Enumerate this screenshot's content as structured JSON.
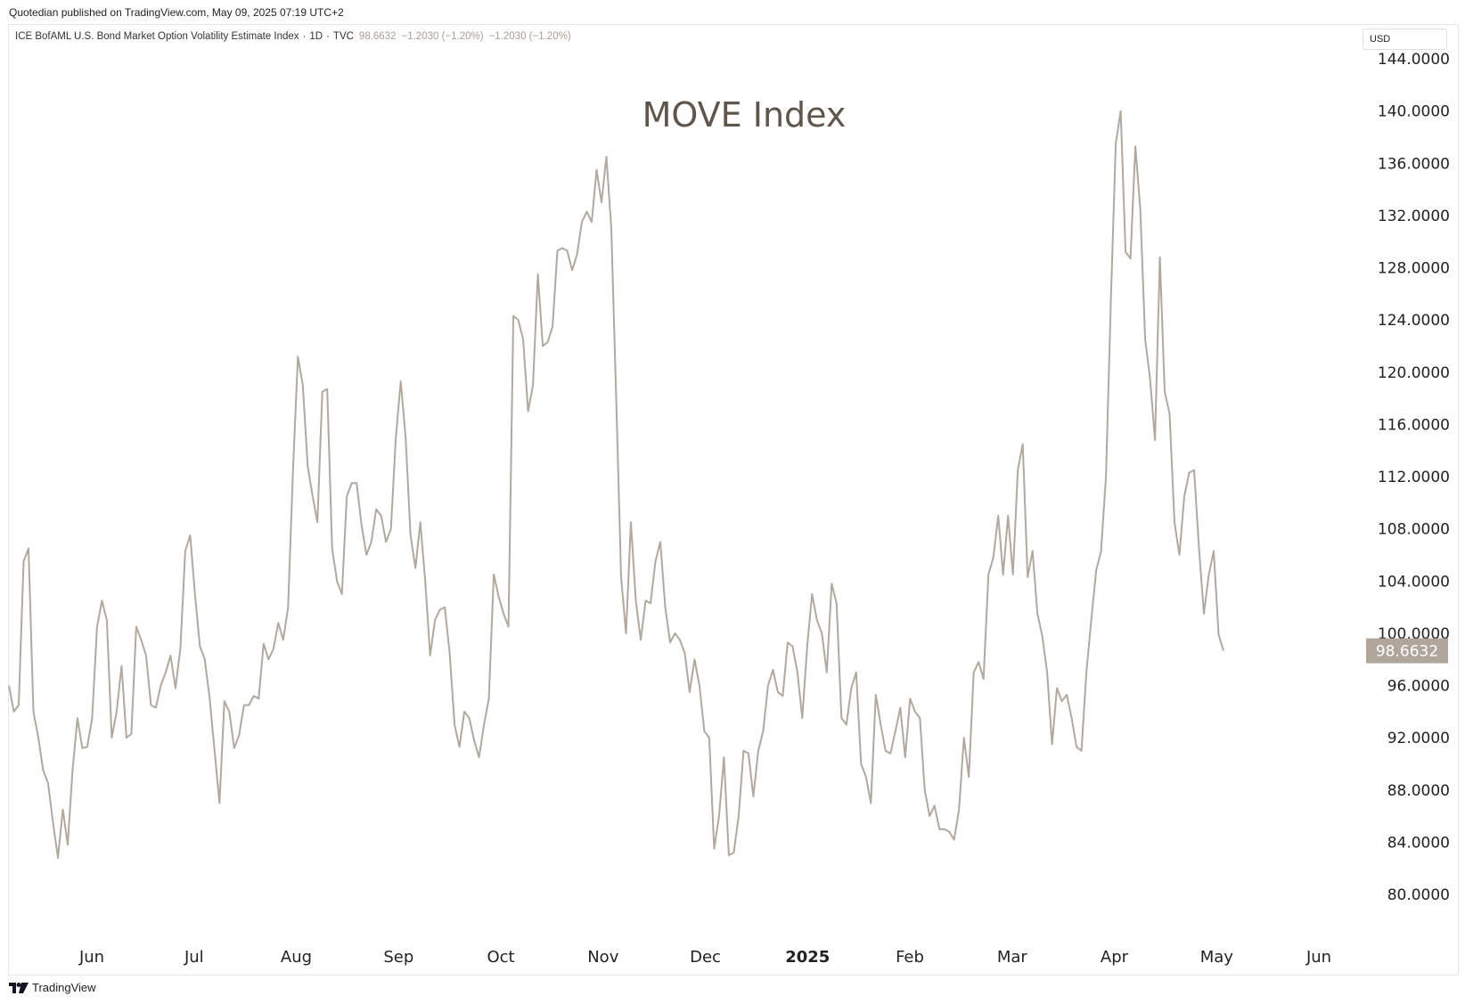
{
  "header": {
    "publish_line": "Quotedian published on TradingView.com, May 09, 2025 07:19 UTC+2",
    "symbol_name": "ICE BofAML U.S. Bond Market Option Volatility Estimate Index",
    "interval": "1D",
    "source": "TVC",
    "last_value": "98.6632",
    "change_1": "−1.2030 (−1.20%)",
    "change_2": "−1.2030 (−1.20%)",
    "currency": "USD"
  },
  "footer": {
    "brand": "TradingView"
  },
  "colors": {
    "line": "#b2a89e",
    "last_label_bg": "#b0a69c",
    "title_color": "#5f554b",
    "axis_text": "#222222"
  },
  "chart_data": {
    "type": "line",
    "title": "MOVE Index",
    "ylim": [
      80,
      144
    ],
    "y_ticks": [
      "144.0000",
      "140.0000",
      "136.0000",
      "132.0000",
      "128.0000",
      "124.0000",
      "120.0000",
      "116.0000",
      "112.0000",
      "108.0000",
      "104.0000",
      "100.0000",
      "96.0000",
      "92.0000",
      "88.0000",
      "84.0000",
      "80.0000"
    ],
    "x_ticks": [
      "Jun",
      "Jul",
      "Aug",
      "Sep",
      "Oct",
      "Nov",
      "Dec",
      "2025",
      "Feb",
      "Mar",
      "Apr",
      "May",
      "Jun"
    ],
    "last_value_label": "98.6632",
    "series": [
      {
        "values": [
          96.0,
          94.0,
          94.5,
          105.5,
          106.5,
          94.0,
          92.0,
          89.5,
          88.5,
          85.5,
          82.8,
          86.5,
          83.8,
          89.5,
          93.5,
          91.2,
          91.3,
          93.5,
          100.5,
          102.5,
          101.0,
          92.0,
          94.0,
          97.5,
          92.0,
          92.3,
          100.5,
          99.5,
          98.3,
          94.5,
          94.3,
          96.0,
          97.0,
          98.3,
          95.8,
          98.8,
          106.3,
          107.5,
          103.0,
          99.0,
          98.0,
          95.0,
          91.0,
          87.0,
          94.8,
          94.0,
          91.2,
          92.2,
          94.5,
          94.5,
          95.2,
          95.0,
          99.2,
          98.0,
          98.8,
          100.8,
          99.5,
          102.0,
          112.5,
          121.2,
          119.0,
          112.8,
          110.5,
          108.5,
          118.5,
          118.7,
          106.5,
          104.0,
          103.0,
          110.5,
          111.5,
          111.5,
          108.3,
          106.0,
          107.0,
          109.5,
          109.0,
          107.0,
          108.0,
          115.0,
          119.3,
          115.0,
          107.5,
          105.0,
          108.5,
          104.0,
          98.3,
          101.0,
          101.8,
          102.0,
          98.5,
          93.0,
          91.3,
          94.0,
          93.5,
          91.8,
          90.5,
          93.0,
          95.0,
          104.5,
          102.8,
          101.5,
          100.5,
          124.3,
          124.0,
          122.5,
          117.0,
          119.0,
          127.5,
          122.0,
          122.3,
          123.5,
          129.3,
          129.5,
          129.3,
          127.8,
          129.0,
          131.5,
          132.3,
          131.5,
          135.5,
          133.0,
          136.5,
          131.0,
          118.0,
          104.3,
          100.0,
          108.5,
          102.5,
          99.5,
          102.5,
          102.3,
          105.5,
          107.0,
          102.0,
          99.3,
          100.0,
          99.5,
          98.5,
          95.5,
          98.0,
          96.0,
          92.5,
          92.0,
          83.5,
          86.0,
          90.5,
          83.0,
          83.2,
          86.0,
          91.0,
          90.8,
          87.5,
          91.0,
          92.5,
          96.0,
          97.2,
          95.5,
          95.2,
          99.3,
          99.0,
          97.0,
          93.5,
          99.0,
          103.0,
          101.0,
          100.0,
          97.0,
          103.8,
          102.3,
          93.5,
          93.0,
          95.8,
          97.0,
          90.0,
          89.0,
          87.0,
          95.3,
          93.0,
          91.0,
          90.8,
          92.5,
          94.3,
          90.5,
          95.0,
          94.0,
          93.5,
          88.0,
          86.0,
          86.8,
          85.0,
          85.0,
          84.8,
          84.2,
          86.5,
          92.0,
          89.0,
          97.0,
          97.8,
          96.5,
          104.5,
          105.8,
          109.0,
          104.5,
          109.0,
          104.5,
          112.5,
          114.5,
          104.3,
          106.3,
          101.5,
          99.8,
          97.0,
          91.5,
          95.8,
          94.8,
          95.3,
          93.5,
          91.3,
          91.0,
          97.0,
          101.0,
          104.8,
          106.3,
          112.0,
          125.5,
          137.5,
          140.0,
          129.2,
          128.7,
          137.3,
          132.5,
          122.5,
          119.5,
          114.8,
          128.8,
          118.5,
          116.8,
          108.5,
          106.0,
          110.5,
          112.3,
          112.5,
          106.5,
          101.5,
          104.5,
          106.3,
          99.9,
          98.6632
        ],
        "date_span": [
          "2024-05-09",
          "2025-05-08"
        ]
      }
    ]
  }
}
